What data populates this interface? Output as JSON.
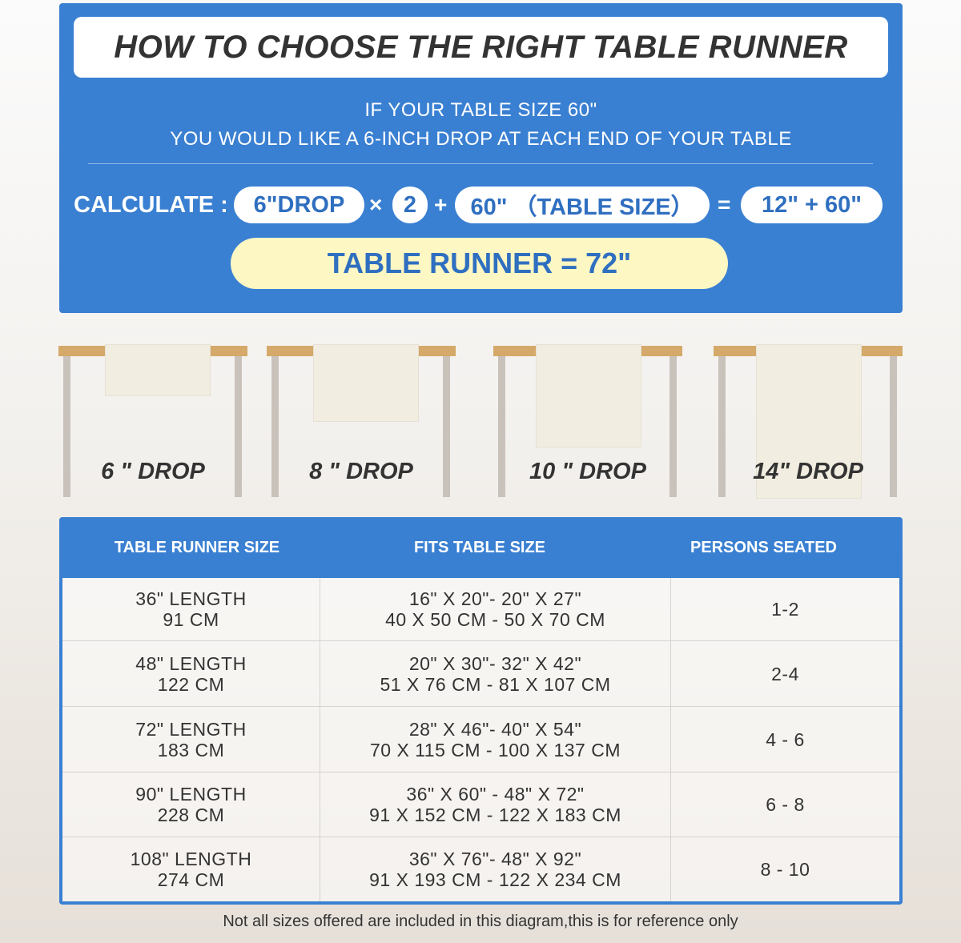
{
  "header": {
    "title": "HOW TO CHOOSE THE RIGHT TABLE RUNNER",
    "line1": "IF YOUR TABLE SIZE 60\"",
    "line2": "YOU WOULD LIKE A 6-INCH DROP AT EACH END OF YOUR TABLE"
  },
  "calc": {
    "label": "CALCULATE :",
    "drop": "6\"DROP",
    "times": "×",
    "two": "2",
    "plus": "+",
    "table": "60\"  （TABLE SIZE）",
    "equals": "=",
    "sum": "12\" + 60\"",
    "result": "TABLE RUNNER = 72\""
  },
  "drops": [
    {
      "label": "6 \" DROP",
      "inches": 6
    },
    {
      "label": "8 \" DROP",
      "inches": 8
    },
    {
      "label": "10 \" DROP",
      "inches": 10
    },
    {
      "label": "14\" DROP",
      "inches": 14
    }
  ],
  "table": {
    "headers": [
      "TABLE RUNNER SIZE",
      "FITS TABLE SIZE",
      "PERSONS SEATED"
    ],
    "rows": [
      {
        "size": [
          "36\" LENGTH",
          "91 CM"
        ],
        "fits": [
          "16\" X 20\"- 20\" X 27\"",
          "40 X 50 CM - 50 X 70 CM"
        ],
        "persons": "1-2"
      },
      {
        "size": [
          "48\" LENGTH",
          "122 CM"
        ],
        "fits": [
          "20\" X 30\"- 32\" X 42\"",
          "51 X 76 CM - 81 X 107 CM"
        ],
        "persons": "2-4"
      },
      {
        "size": [
          "72\" LENGTH",
          "183 CM"
        ],
        "fits": [
          "28\" X 46\"- 40\" X 54\"",
          "70 X 115 CM - 100 X 137 CM"
        ],
        "persons": "4 - 6"
      },
      {
        "size": [
          "90\" LENGTH",
          "228 CM"
        ],
        "fits": [
          "36\" X 60\" - 48\" X 72\"",
          "91 X 152 CM - 122 X 183 CM"
        ],
        "persons": "6 - 8"
      },
      {
        "size": [
          "108\" LENGTH",
          "274 CM"
        ],
        "fits": [
          "36\" X 76\"- 48\" X 92\"",
          "91 X 193 CM - 122 X 234 CM"
        ],
        "persons": "8 - 10"
      }
    ]
  },
  "note": "Not all sizes offered are included in this diagram,this is for reference only",
  "colors": {
    "blue": "#3a80d2",
    "yellow": "#fdf7c3",
    "wood": "#d4a96a"
  }
}
